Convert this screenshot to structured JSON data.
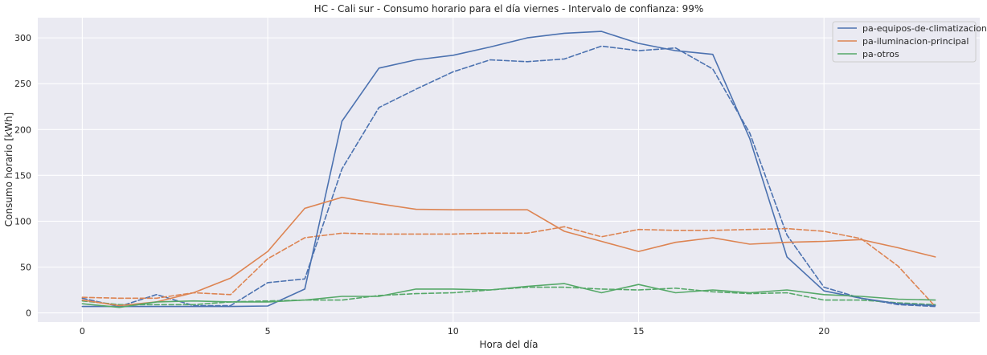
{
  "chart_data": {
    "type": "line",
    "title": "HC - Cali sur - Consumo horario para el día viernes - Intervalo de confianza: 99%",
    "xlabel": "Hora del día",
    "ylabel": "Consumo horario [kWh]",
    "xlim": [
      -1.2,
      24.2
    ],
    "ylim": [
      -10,
      322
    ],
    "xticks": [
      0,
      5,
      10,
      15,
      20
    ],
    "xtick_labels": [
      "0",
      "5",
      "10",
      "15",
      "20"
    ],
    "yticks": [
      0,
      50,
      100,
      150,
      200,
      250,
      300
    ],
    "ytick_labels": [
      "0",
      "50",
      "100",
      "150",
      "200",
      "250",
      "300"
    ],
    "grid": true,
    "legend_position": "top-right",
    "x": [
      0,
      1,
      2,
      3,
      4,
      5,
      6,
      7,
      8,
      9,
      10,
      11,
      12,
      13,
      14,
      15,
      16,
      17,
      18,
      19,
      20,
      21,
      22,
      23
    ],
    "series": [
      {
        "name": "pa-equipos-de-climatizacion",
        "color": "#4c72b0",
        "style": "solid",
        "values": [
          7,
          7,
          7,
          7,
          7,
          7.5,
          26,
          209,
          267,
          276,
          281,
          290,
          300,
          305,
          307,
          294,
          286,
          282,
          190,
          61,
          24,
          16,
          10,
          8
        ]
      },
      {
        "name": "pa-iluminacion-principal",
        "color": "#dd8452",
        "style": "solid",
        "values": [
          14,
          8,
          12,
          22,
          38,
          67,
          114,
          126,
          119,
          113,
          112.5,
          112.5,
          112.5,
          89,
          78,
          67,
          77,
          82,
          75,
          77,
          78,
          80,
          71,
          61
        ]
      },
      {
        "name": "pa-otros",
        "color": "#55a868",
        "style": "solid",
        "values": [
          10,
          6,
          12,
          13,
          12,
          12,
          14,
          18,
          18,
          26,
          26,
          25,
          29,
          32,
          22,
          31,
          22,
          25,
          22,
          25,
          20,
          18,
          15,
          14
        ]
      },
      {
        "color": "#4c72b0",
        "style": "dashed",
        "values": [
          16,
          7,
          20,
          8,
          8,
          33,
          37,
          157,
          224,
          244,
          263,
          276,
          274,
          277,
          291,
          286,
          289,
          266,
          196,
          85,
          28,
          16,
          9,
          7
        ]
      },
      {
        "color": "#dd8452",
        "style": "dashed",
        "values": [
          17,
          16,
          16,
          22,
          20,
          59,
          82,
          87,
          86,
          86,
          86,
          87,
          87,
          94,
          83,
          91,
          90,
          90,
          91,
          92,
          89,
          81,
          51,
          7
        ]
      },
      {
        "color": "#55a868",
        "style": "dashed",
        "values": [
          13,
          9,
          9,
          9,
          12,
          13,
          14,
          14,
          19,
          21,
          22,
          25,
          28,
          28,
          26,
          25,
          27,
          23,
          21,
          22,
          14,
          14,
          11,
          9
        ]
      }
    ]
  }
}
